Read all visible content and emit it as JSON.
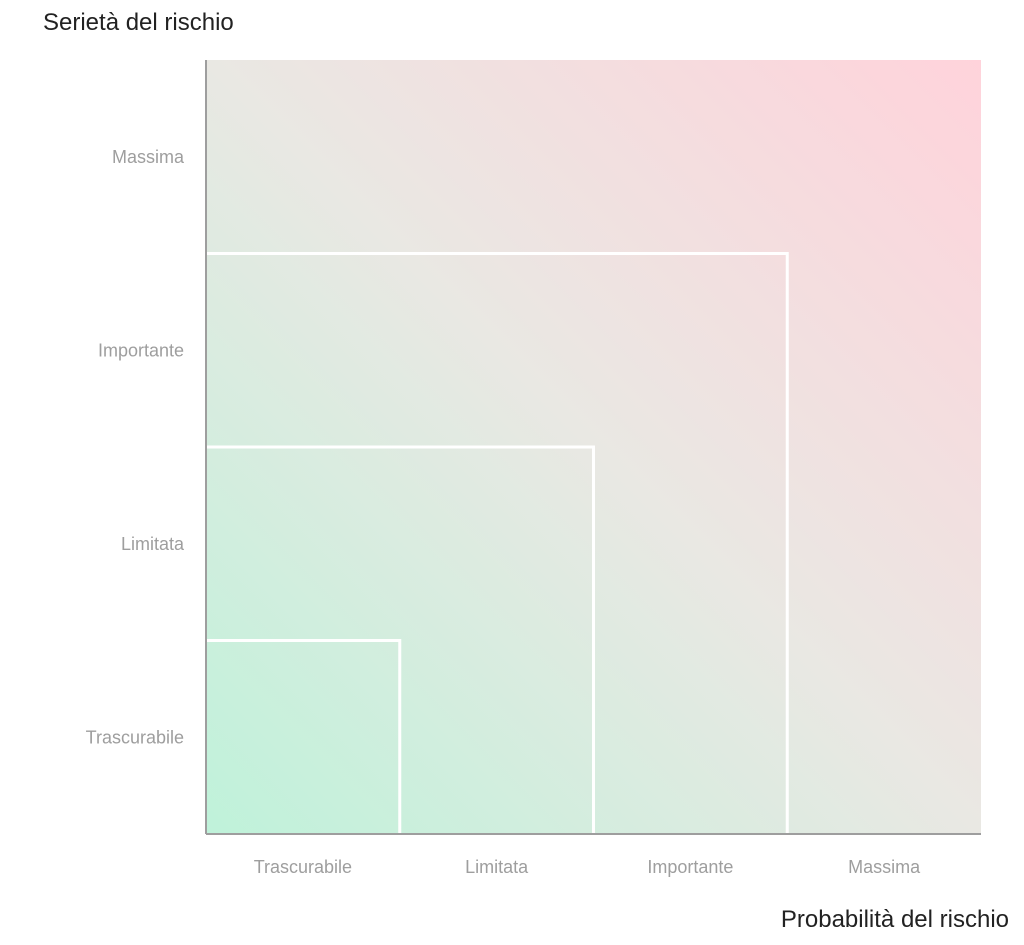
{
  "chart_data": {
    "type": "heatmap",
    "title": "",
    "ylabel": "Serietà del rischio",
    "xlabel": "Probabilità del rischio",
    "x_categories": [
      "Trascurabile",
      "Limitata",
      "Importante",
      "Massima"
    ],
    "y_categories": [
      "Trascurabile",
      "Limitata",
      "Importante",
      "Massima"
    ],
    "risk_levels": [
      1,
      2,
      3
    ],
    "grid": false,
    "legend": "none",
    "colors": {
      "low": "#bff2da",
      "mid": "#e9e8e3",
      "high": "#ffd3db",
      "boundary": "#ffffff",
      "axis": "#9e9e9e"
    }
  }
}
